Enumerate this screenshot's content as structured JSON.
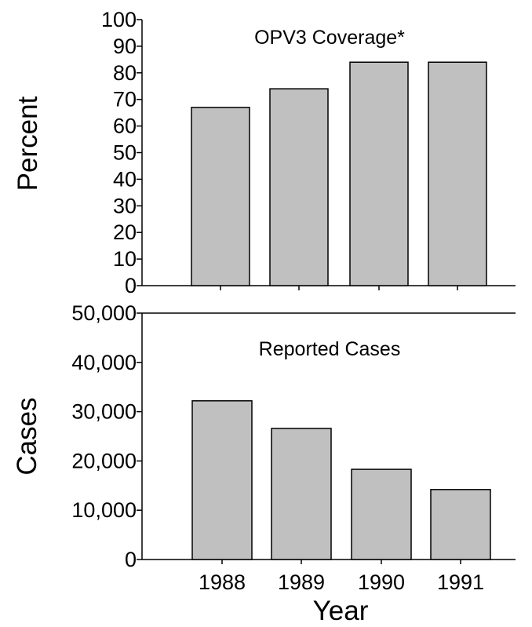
{
  "chart_data": [
    {
      "type": "bar",
      "title": "OPV3 Coverage*",
      "ylabel": "Percent",
      "xlabel": "",
      "categories": [
        "1988",
        "1989",
        "1990",
        "1991"
      ],
      "values": [
        67,
        74,
        84,
        84
      ],
      "ylim": [
        0,
        100
      ],
      "yticks": [
        0,
        10,
        20,
        30,
        40,
        50,
        60,
        70,
        80,
        90,
        100
      ],
      "ytick_labels": [
        "0",
        "10",
        "20",
        "30",
        "40",
        "50",
        "60",
        "70",
        "80",
        "90",
        "100"
      ],
      "bar_color": "#c0c0c0",
      "grid": false
    },
    {
      "type": "bar",
      "title": "Reported Cases",
      "ylabel": "Cases",
      "xlabel": "Year",
      "categories": [
        "1988",
        "1989",
        "1990",
        "1991"
      ],
      "values": [
        32200,
        26600,
        18300,
        14200
      ],
      "ylim": [
        0,
        50000
      ],
      "yticks": [
        0,
        10000,
        20000,
        30000,
        40000,
        50000
      ],
      "ytick_labels": [
        "0",
        "10,000",
        "20,000",
        "30,000",
        "40,000",
        "50,000"
      ],
      "bar_color": "#c0c0c0",
      "grid": false
    }
  ]
}
